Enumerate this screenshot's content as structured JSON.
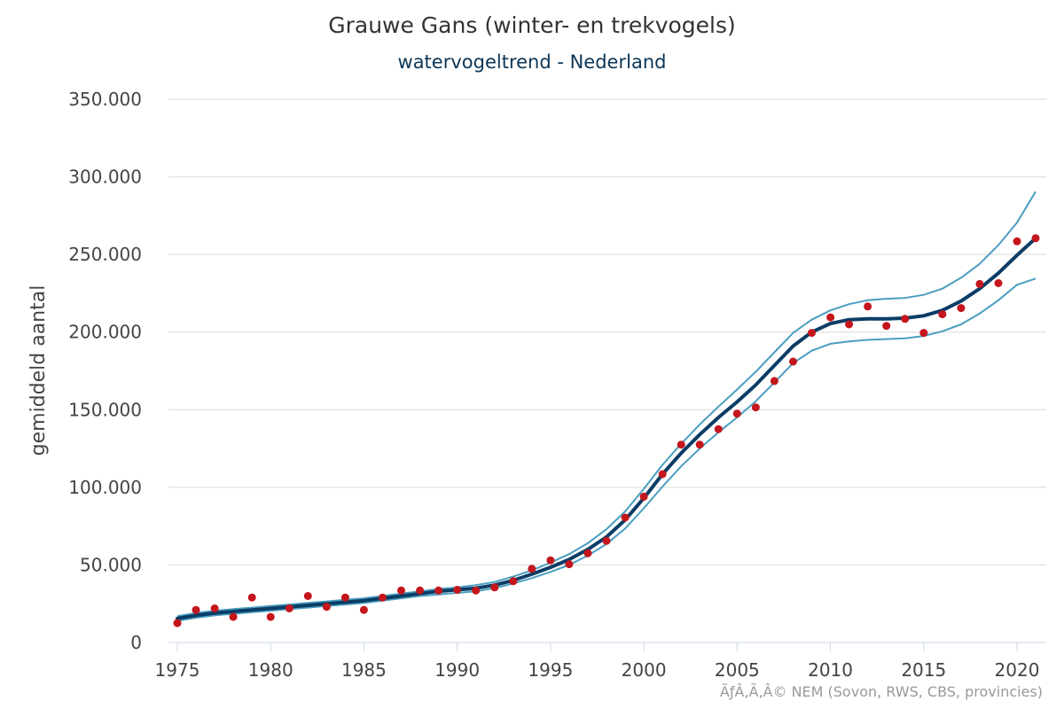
{
  "chart_data": {
    "type": "line",
    "title": "Grauwe Gans (winter- en trekvogels)",
    "subtitle": "watervogeltrend - Nederland",
    "ylabel": "gemiddeld aantal",
    "xlabel": "",
    "credits": "ÃƒÂ‚Ã‚Â© NEM (Sovon, RWS, CBS, provincies)",
    "xlim": [
      1975,
      2021.5
    ],
    "ylim": [
      0,
      350000
    ],
    "grid": true,
    "legend": "none",
    "xticks": [
      1975,
      1980,
      1985,
      1990,
      1995,
      2000,
      2005,
      2010,
      2015,
      2020
    ],
    "xtick_labels": [
      "1975",
      "1980",
      "1985",
      "1990",
      "1995",
      "2000",
      "2005",
      "2010",
      "2015",
      "2020"
    ],
    "yticks": [
      0,
      50000,
      100000,
      150000,
      200000,
      250000,
      300000,
      350000
    ],
    "ytick_labels": [
      "0",
      "50.000",
      "100.000",
      "150.000",
      "200.000",
      "250.000",
      "300.000",
      "350.000"
    ],
    "colors": {
      "trend": "#0b3d66",
      "bounds": "#4a9ec0",
      "points": "#c4161c",
      "grid": "#d9d9d9",
      "axis": "#ccd6eb"
    },
    "x": [
      1975,
      1976,
      1977,
      1978,
      1979,
      1980,
      1981,
      1982,
      1983,
      1984,
      1985,
      1986,
      1987,
      1988,
      1989,
      1990,
      1991,
      1992,
      1993,
      1994,
      1995,
      1996,
      1997,
      1998,
      1999,
      2000,
      2001,
      2002,
      2003,
      2004,
      2005,
      2006,
      2007,
      2008,
      2009,
      2010,
      2011,
      2012,
      2013,
      2014,
      2015,
      2016,
      2017,
      2018,
      2019,
      2020,
      2021
    ],
    "series": [
      {
        "role": "index",
        "values": [
          12500,
          21000,
          22000,
          16500,
          29000,
          16500,
          22000,
          30000,
          23000,
          29000,
          21000,
          29000,
          33500,
          33500,
          33500,
          34000,
          33500,
          35500,
          39500,
          47500,
          53000,
          50500,
          57500,
          65500,
          80500,
          94000,
          108500,
          127500,
          127500,
          137500,
          147500,
          151500,
          168500,
          181000,
          199500,
          209500,
          205000,
          216500,
          204000,
          208500,
          199500,
          211500,
          215500,
          231000,
          231500,
          258500,
          260500
        ]
      },
      {
        "role": "trend",
        "values": [
          15500,
          17500,
          19000,
          20000,
          21000,
          22000,
          23000,
          24000,
          25000,
          26000,
          27000,
          28500,
          30000,
          31500,
          33000,
          34000,
          35000,
          37000,
          40000,
          44000,
          48500,
          53500,
          60000,
          68000,
          79000,
          93000,
          108500,
          122000,
          134000,
          145000,
          155000,
          166000,
          178500,
          191000,
          200000,
          205500,
          208000,
          208500,
          208500,
          209000,
          210500,
          214000,
          220000,
          228000,
          238000,
          249500,
          260500
        ]
      },
      {
        "role": "upper-bound",
        "values": [
          17000,
          19000,
          20500,
          21500,
          22500,
          23500,
          24500,
          25500,
          26500,
          27500,
          28500,
          30000,
          31500,
          33000,
          34500,
          35500,
          37000,
          39000,
          42500,
          46500,
          51500,
          57000,
          64000,
          73000,
          84500,
          99000,
          114500,
          128000,
          140500,
          152000,
          163000,
          174500,
          187000,
          199500,
          208000,
          214000,
          218000,
          220500,
          221500,
          222000,
          224000,
          228000,
          235000,
          244000,
          256000,
          270500,
          290500
        ]
      },
      {
        "role": "lower-bound",
        "values": [
          14000,
          16000,
          17500,
          18500,
          19500,
          20500,
          21500,
          22500,
          23500,
          24500,
          25500,
          27000,
          28500,
          30000,
          31000,
          32000,
          33000,
          35000,
          38000,
          41500,
          45500,
          50000,
          56000,
          63500,
          73500,
          86500,
          100500,
          113500,
          125000,
          135500,
          145000,
          155500,
          167500,
          180000,
          188000,
          192500,
          194000,
          195000,
          195500,
          196000,
          197500,
          200500,
          205000,
          212000,
          220500,
          230500,
          234500
        ]
      }
    ]
  }
}
